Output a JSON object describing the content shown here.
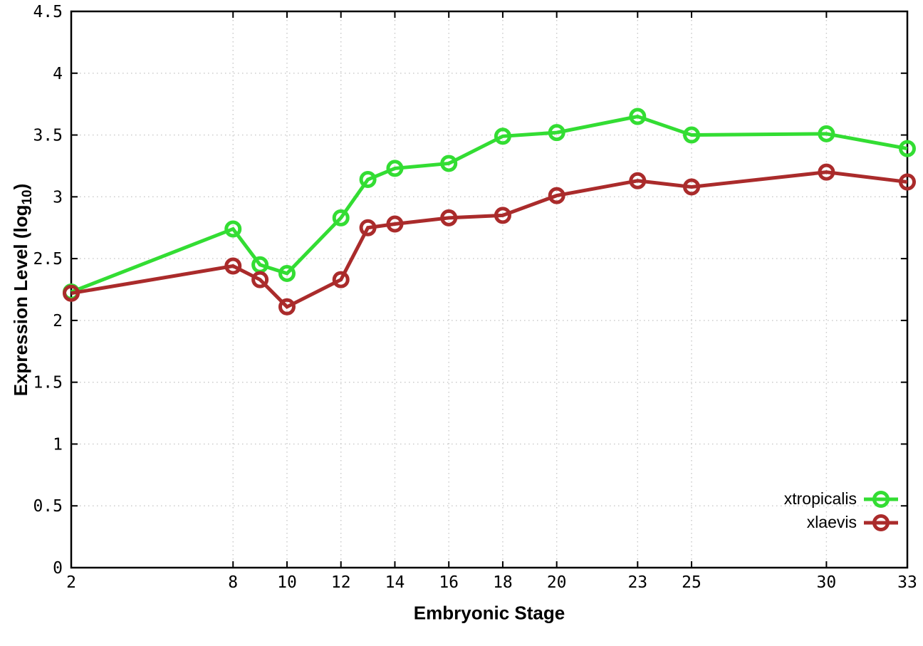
{
  "chart_data": {
    "type": "line",
    "title": "",
    "xlabel": "Embryonic Stage",
    "ylabel": "Expression Level (log10)",
    "ylabel_parts": {
      "main": "Expression Level (log",
      "sub": "10",
      "close": ")"
    },
    "x": [
      2,
      8,
      9,
      10,
      12,
      13,
      14,
      16,
      18,
      20,
      23,
      25,
      30,
      33
    ],
    "series": [
      {
        "name": "xtropicalis",
        "color": "#33dd33",
        "values": [
          2.23,
          2.74,
          2.45,
          2.38,
          2.83,
          3.14,
          3.23,
          3.27,
          3.49,
          3.52,
          3.65,
          3.5,
          3.51,
          3.39
        ]
      },
      {
        "name": "xlaevis",
        "color": "#aa2b2b",
        "values": [
          2.22,
          2.44,
          2.33,
          2.11,
          2.33,
          2.75,
          2.78,
          2.83,
          2.85,
          3.01,
          3.13,
          3.08,
          3.2,
          3.12
        ]
      }
    ],
    "xticks": [
      2,
      8,
      10,
      12,
      14,
      16,
      18,
      20,
      23,
      25,
      30,
      33
    ],
    "yticks": [
      0,
      0.5,
      1,
      1.5,
      2,
      2.5,
      3,
      3.5,
      4,
      4.5
    ],
    "xlim": [
      2,
      33
    ],
    "ylim": [
      0,
      4.5
    ],
    "grid": true,
    "legend_position": "bottom-right",
    "marker": "open-circle"
  },
  "colors": {
    "grid": "#c8c8c8",
    "axis": "#000000",
    "background": "#ffffff"
  }
}
